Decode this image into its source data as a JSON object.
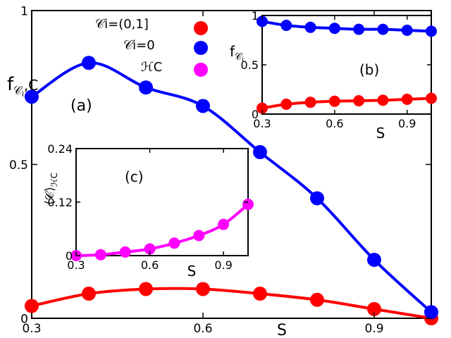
{
  "chart_data": [
    {
      "id": "a",
      "type": "line",
      "panel_label": "(a)",
      "ylabel": "f",
      "ylabel_sub": "𝒞",
      "ylabel_sub_i": "i",
      "ylabel_tail": ",C",
      "xlabel": "S",
      "xlim": [
        0.3,
        1.0
      ],
      "ylim": [
        0,
        1
      ],
      "xticks": [
        0.3,
        0.6,
        0.9
      ],
      "xtick_labels": [
        "0.3",
        "0.6",
        "0.9"
      ],
      "yticks": [
        0,
        0.5,
        1
      ],
      "ytick_labels": [
        "0",
        "0.5",
        "1"
      ],
      "x": [
        0.3,
        0.4,
        0.5,
        0.6,
        0.7,
        0.8,
        0.9,
        1.0
      ],
      "series": [
        {
          "name": "𝒞i=(0,1]",
          "color": "#ff0000",
          "values": [
            0.04,
            0.08,
            0.095,
            0.095,
            0.08,
            0.06,
            0.03,
            0.0
          ]
        },
        {
          "name": "𝒞i=0",
          "color": "#0000ff",
          "values": [
            0.72,
            0.83,
            0.75,
            0.69,
            0.54,
            0.39,
            0.19,
            0.02
          ]
        }
      ],
      "legend": [
        {
          "label": "𝒞i=(0,1]",
          "color": "#ff0000"
        },
        {
          "label": "𝒞i=0",
          "color": "#0000ff"
        },
        {
          "label": "ℋC",
          "color": "#ff00ff"
        }
      ]
    },
    {
      "id": "b",
      "type": "line",
      "panel_label": "(b)",
      "ylabel": "f",
      "ylabel_sub": "𝒞",
      "ylabel_sub_i": "i",
      "xlabel": "S",
      "xlim": [
        0.3,
        1.0
      ],
      "ylim": [
        0,
        1
      ],
      "xticks": [
        0.3,
        0.6,
        0.9
      ],
      "xtick_labels": [
        "0.3",
        "0.6",
        "0.9"
      ],
      "yticks": [
        0,
        0.5,
        1
      ],
      "ytick_labels": [
        "0",
        "0.5",
        "1"
      ],
      "x": [
        0.3,
        0.4,
        0.5,
        0.6,
        0.7,
        0.8,
        0.9,
        1.0
      ],
      "series": [
        {
          "name": "𝒞i=0",
          "color": "#0000ff",
          "values": [
            0.94,
            0.9,
            0.88,
            0.87,
            0.86,
            0.86,
            0.85,
            0.84
          ]
        },
        {
          "name": "𝒞i=(0,1]",
          "color": "#ff0000",
          "values": [
            0.06,
            0.1,
            0.12,
            0.13,
            0.135,
            0.14,
            0.15,
            0.16
          ]
        }
      ]
    },
    {
      "id": "c",
      "type": "line",
      "panel_label": "(c)",
      "ylabel": "⟨𝒞⟩",
      "ylabel_sub": "ℋC",
      "xlabel": "S",
      "xlim": [
        0.3,
        1.0
      ],
      "ylim": [
        0,
        0.24
      ],
      "xticks": [
        0.3,
        0.6,
        0.9
      ],
      "xtick_labels": [
        "0.3",
        "0.6",
        "0.9"
      ],
      "yticks": [
        0,
        0.12,
        0.24
      ],
      "ytick_labels": [
        "0",
        "0.12",
        "0.24"
      ],
      "x": [
        0.3,
        0.4,
        0.5,
        0.6,
        0.7,
        0.8,
        0.9,
        1.0
      ],
      "series": [
        {
          "name": "ℋC",
          "color": "#ff00ff",
          "values": [
            0.0,
            0.002,
            0.008,
            0.015,
            0.028,
            0.045,
            0.07,
            0.115
          ]
        }
      ]
    }
  ]
}
